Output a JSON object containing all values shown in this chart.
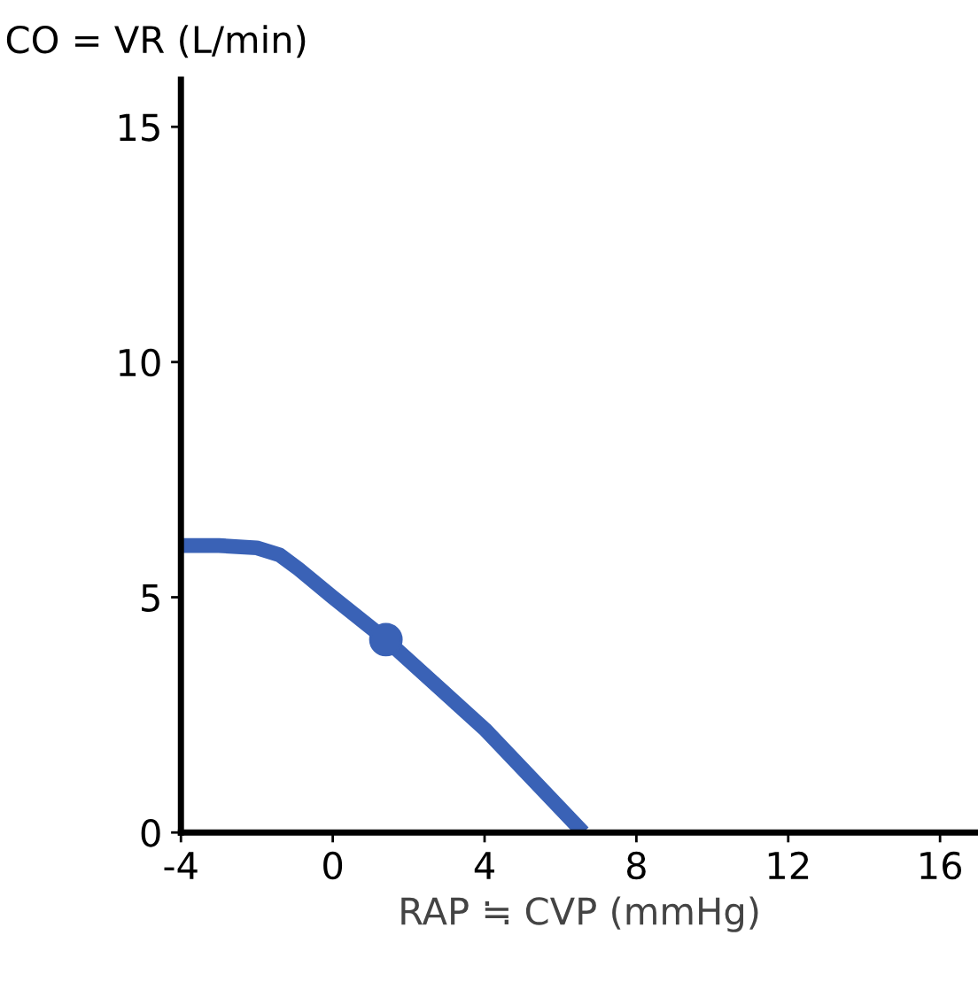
{
  "chart_data": {
    "type": "line",
    "ylabel": "CO = VR (L/min)",
    "xlabel": "RAP ≒ CVP (mmHg)",
    "xlim": [
      -4,
      17
    ],
    "xticks": [
      -4,
      0,
      4,
      8,
      12,
      16
    ],
    "ylim": [
      0,
      16
    ],
    "yticks": [
      0,
      5,
      10,
      15
    ],
    "grid": false,
    "legend": false,
    "series": [
      {
        "color": "#3a62b6",
        "x": [
          -4,
          -3,
          -2,
          -1.4,
          -0.9,
          0,
          1.4,
          4,
          6.6
        ],
        "values": [
          6.1,
          6.1,
          6.05,
          5.9,
          5.6,
          5.0,
          4.1,
          2.2,
          0
        ]
      },
      {
        "type": "scatter",
        "color": "#3a62b6",
        "x": [
          1.4
        ],
        "values": [
          4.1
        ]
      }
    ]
  }
}
